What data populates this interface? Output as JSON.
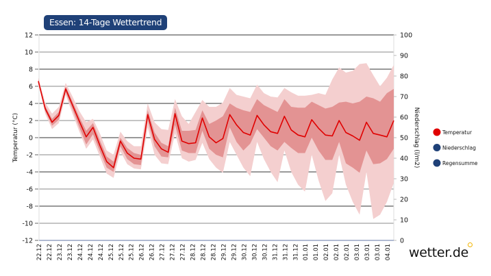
{
  "chart_data": {
    "type": "line",
    "title": "Essen: 14-Tage Wettertrend",
    "ylabel": "Temperatur (°C)",
    "y2label": "Niederschlag (l/m2)",
    "ylim": [
      -12,
      12
    ],
    "y2lim": [
      0,
      100
    ],
    "yticks": [
      -12,
      -10,
      -8,
      -6,
      -4,
      -2,
      0,
      2,
      4,
      6,
      8,
      10,
      12
    ],
    "y2ticks": [
      0,
      10,
      20,
      30,
      40,
      50,
      60,
      70,
      80,
      90,
      100
    ],
    "xtick_labels": [
      "22.12",
      "22.12",
      "23.12",
      "23.12",
      "24.12",
      "24.12",
      "24.12",
      "25.12",
      "25.12",
      "25.12",
      "26.12",
      "26.12",
      "27.12",
      "27.12",
      "27.12",
      "28.12",
      "28.12",
      "28.12",
      "29.12",
      "29.12",
      "30.12",
      "30.12",
      "30.12",
      "31.12",
      "31.12",
      "31.12",
      "01.01",
      "01.01",
      "02.01",
      "02.01",
      "02.01",
      "03.01",
      "03.01",
      "03.01",
      "04.01"
    ],
    "grid": true,
    "legend": {
      "placement": "right",
      "items": [
        {
          "label": "Temperatur",
          "color": "#e00000"
        },
        {
          "label": "Niederschlag",
          "color": "#1f4178"
        },
        {
          "label": "Regensumme",
          "color": "#1f4178"
        }
      ]
    },
    "series": [
      {
        "name": "Temperatur",
        "color": "#e00000",
        "values": [
          6.6,
          3.4,
          1.8,
          2.6,
          5.7,
          3.8,
          1.9,
          0.1,
          1.2,
          -0.9,
          -2.8,
          -3.5,
          -0.4,
          -1.8,
          -2.4,
          -2.5,
          2.7,
          -0.2,
          -1.3,
          -1.7,
          2.8,
          -0.4,
          -0.7,
          -0.6,
          2.3,
          0.1,
          -0.6,
          -0.1,
          2.7,
          1.5,
          0.6,
          0.3,
          2.6,
          1.5,
          0.7,
          0.5,
          2.5,
          0.9,
          0.3,
          0.1,
          2.1,
          1.1,
          0.3,
          0.2,
          2.0,
          0.6,
          0.2,
          -0.3,
          1.8,
          0.5,
          0.3,
          0.1,
          2.0
        ]
      }
    ],
    "bands": {
      "outer_color": "#f4cfcf",
      "inner_color": "#e39393",
      "outer_low": [
        6.3,
        2.8,
        1.0,
        1.7,
        5.0,
        2.8,
        0.7,
        -1.3,
        -0.2,
        -2.2,
        -4.2,
        -4.7,
        -1.6,
        -3.1,
        -3.6,
        -3.7,
        1.2,
        -2.0,
        -3.0,
        -3.1,
        0.5,
        -2.4,
        -2.8,
        -2.6,
        -0.6,
        -2.5,
        -3.5,
        -4.1,
        -0.5,
        -2.0,
        -3.5,
        -4.5,
        -0.5,
        -2.5,
        -4.0,
        -5.2,
        -1.5,
        -4.0,
        -5.5,
        -6.3,
        -2.0,
        -5.0,
        -7.4,
        -6.5,
        -2.0,
        -5.5,
        -7.5,
        -9.0,
        -4.0,
        -9.5,
        -9.0,
        -7.5,
        -5.3
      ],
      "inner_low": [
        6.4,
        3.1,
        1.4,
        2.1,
        5.3,
        3.3,
        1.2,
        -0.8,
        0.4,
        -1.6,
        -3.5,
        -4.0,
        -1.0,
        -2.5,
        -3.1,
        -3.2,
        2.0,
        -1.0,
        -2.2,
        -2.3,
        1.5,
        -1.5,
        -1.8,
        -1.8,
        0.8,
        -1.3,
        -2.0,
        -2.3,
        1.2,
        -0.5,
        -1.5,
        -0.7,
        1.0,
        0.0,
        -1.0,
        -1.5,
        -0.5,
        -1.2,
        -1.8,
        -1.8,
        0.0,
        -1.5,
        -2.6,
        -2.6,
        -0.5,
        -3.0,
        -3.5,
        -4.1,
        -1.5,
        -3.1,
        -3.0,
        -2.5,
        -1.3
      ],
      "inner_high": [
        6.8,
        3.7,
        2.2,
        3.0,
        6.0,
        4.2,
        2.4,
        0.8,
        1.7,
        -0.3,
        -2.2,
        -2.8,
        0.0,
        -1.2,
        -1.8,
        -2.0,
        3.2,
        0.6,
        -0.6,
        -1.0,
        3.5,
        0.8,
        0.8,
        0.9,
        3.2,
        1.6,
        2.0,
        2.5,
        4.0,
        3.5,
        3.2,
        3.0,
        4.5,
        3.8,
        3.4,
        3.0,
        4.5,
        3.6,
        3.5,
        3.5,
        4.2,
        3.8,
        3.4,
        3.6,
        4.1,
        4.2,
        4.0,
        4.2,
        4.8,
        4.6,
        4.2,
        5.2,
        5.7
      ],
      "outer_high": [
        7.0,
        4.1,
        2.8,
        3.6,
        6.4,
        4.8,
        3.1,
        1.8,
        2.2,
        0.5,
        -1.5,
        -2.0,
        0.7,
        -0.4,
        -1.0,
        -1.0,
        4.0,
        1.8,
        1.0,
        0.9,
        4.5,
        2.5,
        1.6,
        3.0,
        4.4,
        3.6,
        3.6,
        4.1,
        5.8,
        5.0,
        4.8,
        4.6,
        6.2,
        5.2,
        4.8,
        4.7,
        5.8,
        5.3,
        4.9,
        4.9,
        5.0,
        5.2,
        5.0,
        6.8,
        8.2,
        7.6,
        7.8,
        8.6,
        8.7,
        7.3,
        6.0,
        7.0,
        8.5
      ]
    }
  },
  "logo": {
    "text": "wetter.de",
    "accent_color": "#f2b400"
  }
}
